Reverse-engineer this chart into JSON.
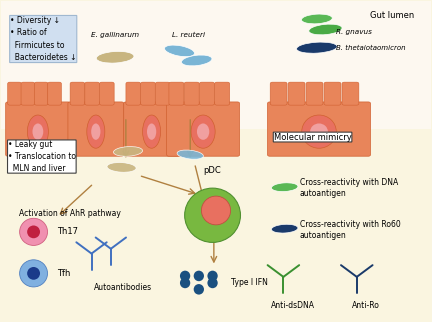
{
  "bg_color": "#faf5e0",
  "top_bg_color": "#fdf8f0",
  "top_box_color": "#d0dff0",
  "arrow_color": "#b08040",
  "bullet_box_lines": [
    "• Diversity ↓",
    "• Ratio of",
    "  Firmicutes to",
    "  Bacteroidetes ↓"
  ],
  "leaky_box_lines": [
    "• Leaky gut",
    "• Translocation to",
    "  MLN and liver"
  ],
  "molecular_mimicry_text": "Molecular mimicry",
  "gut_lumen_text": "Gut lumen",
  "e_gallinarum_text": "E. gallinarum",
  "l_reuteri_text": "L. reuteri",
  "r_gnavus_text": "R. gnavus",
  "b_theta_text": "B. thetaiotaomicron",
  "ahr_text": "Activation of AhR pathway",
  "pdc_text": "pDC",
  "th17_text": "Th17",
  "tfh_text": "Tfh",
  "autoab_text": "Autoantibodies",
  "type1ifn_text": "Type I IFN",
  "cross_dna_text": "Cross-reactivity with DNA\nautoantigen",
  "cross_ro60_text": "Cross-reactivity with Ro60\nautoantigen",
  "anti_dsdna_text": "Anti-dsDNA",
  "anti_ro_text": "Anti-Ro",
  "color_egallinarum": "#c8b580",
  "color_lreuteri": "#7ab5d5",
  "color_rgnavus": "#5ab855",
  "color_btheta": "#1a3a6a",
  "color_pdc_outer": "#78b840",
  "color_pdc_nucleus_outer": "#e87060",
  "color_pdc_nucleus_inner": "#c05040",
  "color_th17_outer": "#f090b0",
  "color_th17_inner": "#c02040",
  "color_tfh_outer": "#80b0e0",
  "color_tfh_inner": "#1a3a8a",
  "color_autoab": "#4070c0",
  "color_anti_dsdna": "#3a9030",
  "color_anti_ro": "#1a3a6a",
  "color_ifn_dots": "#1a5080",
  "color_intestine": "#e8855a",
  "color_intestine_edge": "#d06030",
  "color_cell_outer": "#e87060",
  "color_cell_inner": "#f0a0a0"
}
